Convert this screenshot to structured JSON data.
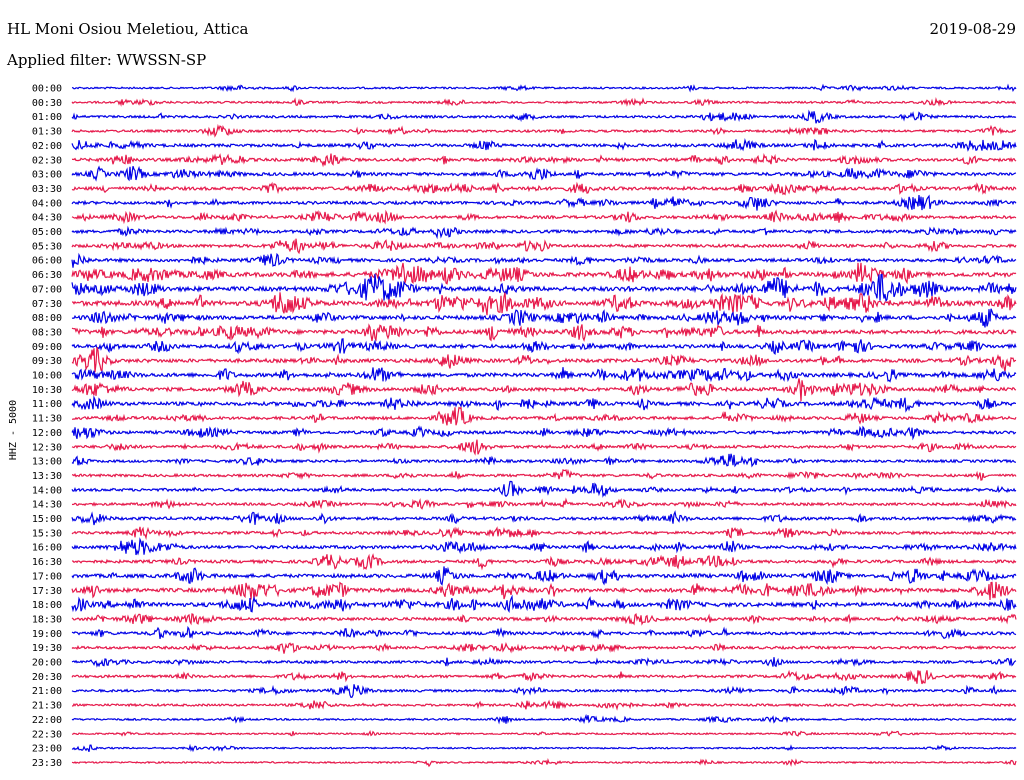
{
  "header": {
    "station": "HL Moni Osiou Meletiou, Attica",
    "date": "2019-08-29",
    "filter": "Applied filter: WWSSN-SP"
  },
  "colors": {
    "even_row": "#0000e6",
    "odd_row": "#e6194b",
    "background": "#ffffff"
  },
  "chart_data": {
    "type": "line",
    "ylabel": "HHZ - 5000",
    "rows": [
      "00:00",
      "00:30",
      "01:00",
      "01:30",
      "02:00",
      "02:30",
      "03:00",
      "03:30",
      "04:00",
      "04:30",
      "05:00",
      "05:30",
      "06:00",
      "06:30",
      "07:00",
      "07:30",
      "08:00",
      "08:30",
      "09:00",
      "09:30",
      "10:00",
      "10:30",
      "11:00",
      "11:30",
      "12:00",
      "12:30",
      "13:00",
      "13:30",
      "14:00",
      "14:30",
      "15:00",
      "15:30",
      "16:00",
      "16:30",
      "17:00",
      "17:30",
      "18:00",
      "18:30",
      "19:00",
      "19:30",
      "20:00",
      "20:30",
      "21:00",
      "21:30",
      "22:00",
      "22:30",
      "23:00",
      "23:30"
    ],
    "activity": [
      0.15,
      0.2,
      0.3,
      0.3,
      0.45,
      0.45,
      0.5,
      0.5,
      0.45,
      0.45,
      0.45,
      0.45,
      0.5,
      0.8,
      0.8,
      0.9,
      0.7,
      0.7,
      0.6,
      0.6,
      0.65,
      0.6,
      0.6,
      0.45,
      0.45,
      0.4,
      0.35,
      0.35,
      0.4,
      0.35,
      0.45,
      0.4,
      0.5,
      0.45,
      0.6,
      0.7,
      0.7,
      0.45,
      0.45,
      0.35,
      0.35,
      0.35,
      0.3,
      0.25,
      0.15,
      0.1,
      0.08,
      0.08
    ],
    "grid": false
  }
}
